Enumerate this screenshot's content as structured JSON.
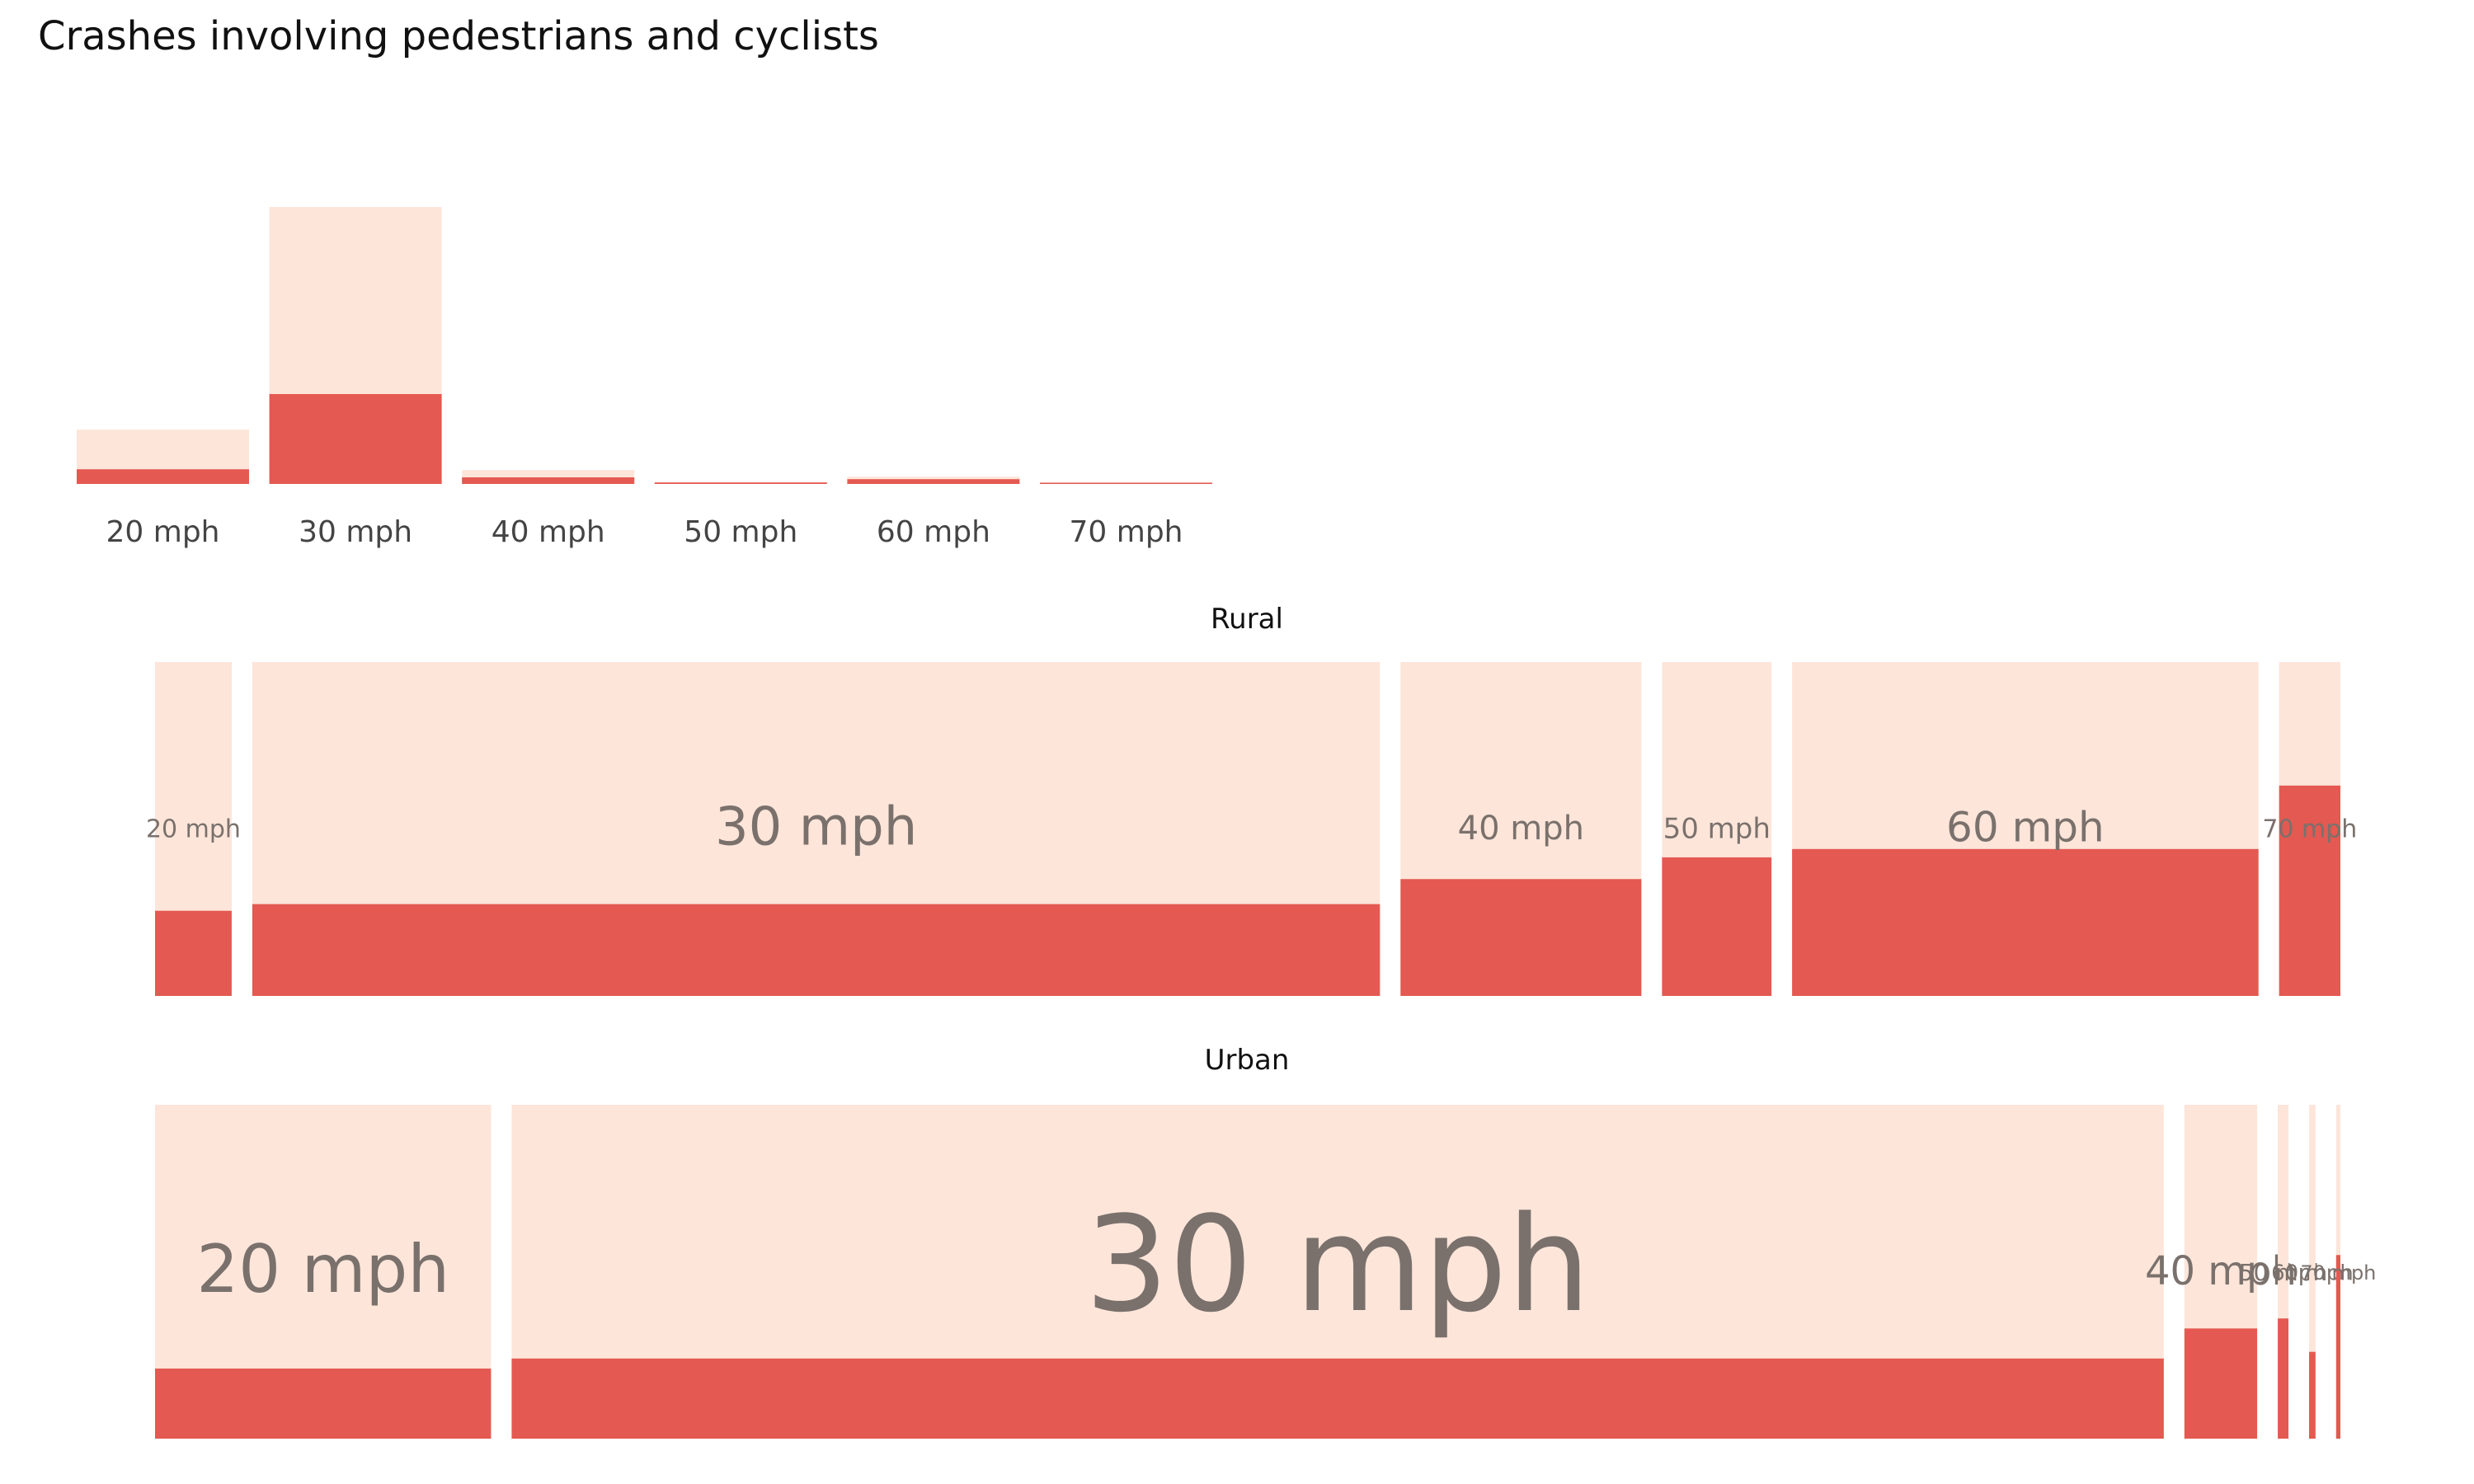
{
  "chart_data": [
    {
      "type": "bar",
      "stacked": true,
      "title": "Crashes involving pedestrians and cyclists",
      "categories": [
        "20 mph",
        "30 mph",
        "40 mph",
        "50 mph",
        "60 mph",
        "70 mph"
      ],
      "ylim": [
        0,
        1
      ],
      "series": [
        {
          "values": [
            0.04,
            0.245,
            0.018,
            0.004,
            0.013,
            0.001
          ]
        },
        {
          "values": [
            0.148,
            0.755,
            0.038,
            0.005,
            0.02,
            0.002
          ]
        }
      ],
      "grid": false,
      "legend": "none"
    },
    {
      "type": "bar",
      "variable_width": true,
      "title": "Rural",
      "categories": [
        "20 mph",
        "30 mph",
        "40 mph",
        "50 mph",
        "60 mph",
        "70 mph"
      ],
      "widths": [
        0.035,
        0.515,
        0.11,
        0.05,
        0.213,
        0.028
      ],
      "values": [
        0.255,
        0.275,
        0.35,
        0.415,
        0.44,
        0.63
      ],
      "ylim": [
        0,
        1
      ]
    },
    {
      "type": "bar",
      "variable_width": true,
      "title": "Urban",
      "categories": [
        "20 mph",
        "30 mph",
        "40 mph",
        "50 mph",
        "60 mph",
        "70 mph"
      ],
      "widths": [
        0.157,
        0.772,
        0.034,
        0.005,
        0.003,
        0.002
      ],
      "values": [
        0.21,
        0.24,
        0.33,
        0.36,
        0.26,
        0.55
      ],
      "ylim": [
        0,
        1
      ]
    }
  ],
  "colors": {
    "total": "#fde5da",
    "involved": "#e45951",
    "label_text": "#7a716c",
    "tick_text": "#444444"
  }
}
